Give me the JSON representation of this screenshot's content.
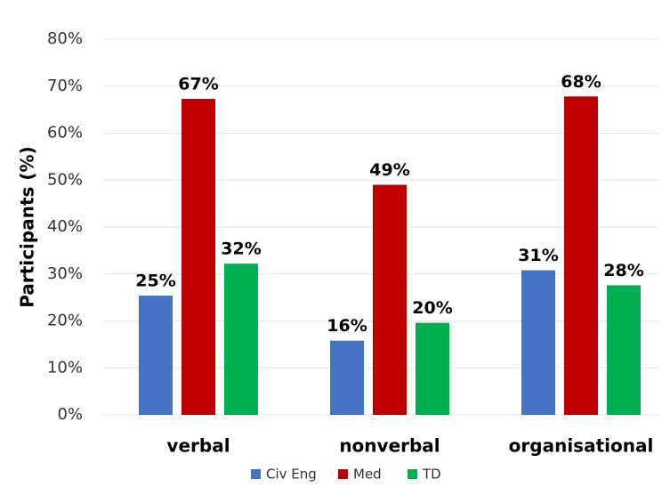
{
  "chart_data": {
    "type": "bar",
    "y_label": "Participants (%)",
    "categories": [
      "verbal",
      "nonverbal",
      "organisational"
    ],
    "series": [
      {
        "name": "Civ Eng",
        "color": "#4472c4",
        "values": [
          25.4,
          15.8,
          30.8
        ],
        "value_labels": [
          "25%",
          "16%",
          "31%"
        ]
      },
      {
        "name": "Med",
        "color": "#c00000",
        "values": [
          67.3,
          49.0,
          67.8
        ],
        "value_labels": [
          "67%",
          "49%",
          "68%"
        ]
      },
      {
        "name": "TD",
        "color": "#00b050",
        "values": [
          32.2,
          19.6,
          27.6
        ],
        "value_labels": [
          "32%",
          "20%",
          "28%"
        ]
      }
    ],
    "ylim": [
      0,
      80
    ],
    "yticks": [
      {
        "value": 0,
        "label": "0%"
      },
      {
        "value": 10,
        "label": "10%"
      },
      {
        "value": 20,
        "label": "20%"
      },
      {
        "value": 30,
        "label": "30%"
      },
      {
        "value": 40,
        "label": "40%"
      },
      {
        "value": 50,
        "label": "50%"
      },
      {
        "value": 60,
        "label": "60%"
      },
      {
        "value": 70,
        "label": "70%"
      },
      {
        "value": 80,
        "label": "80%"
      }
    ],
    "grid": true
  }
}
